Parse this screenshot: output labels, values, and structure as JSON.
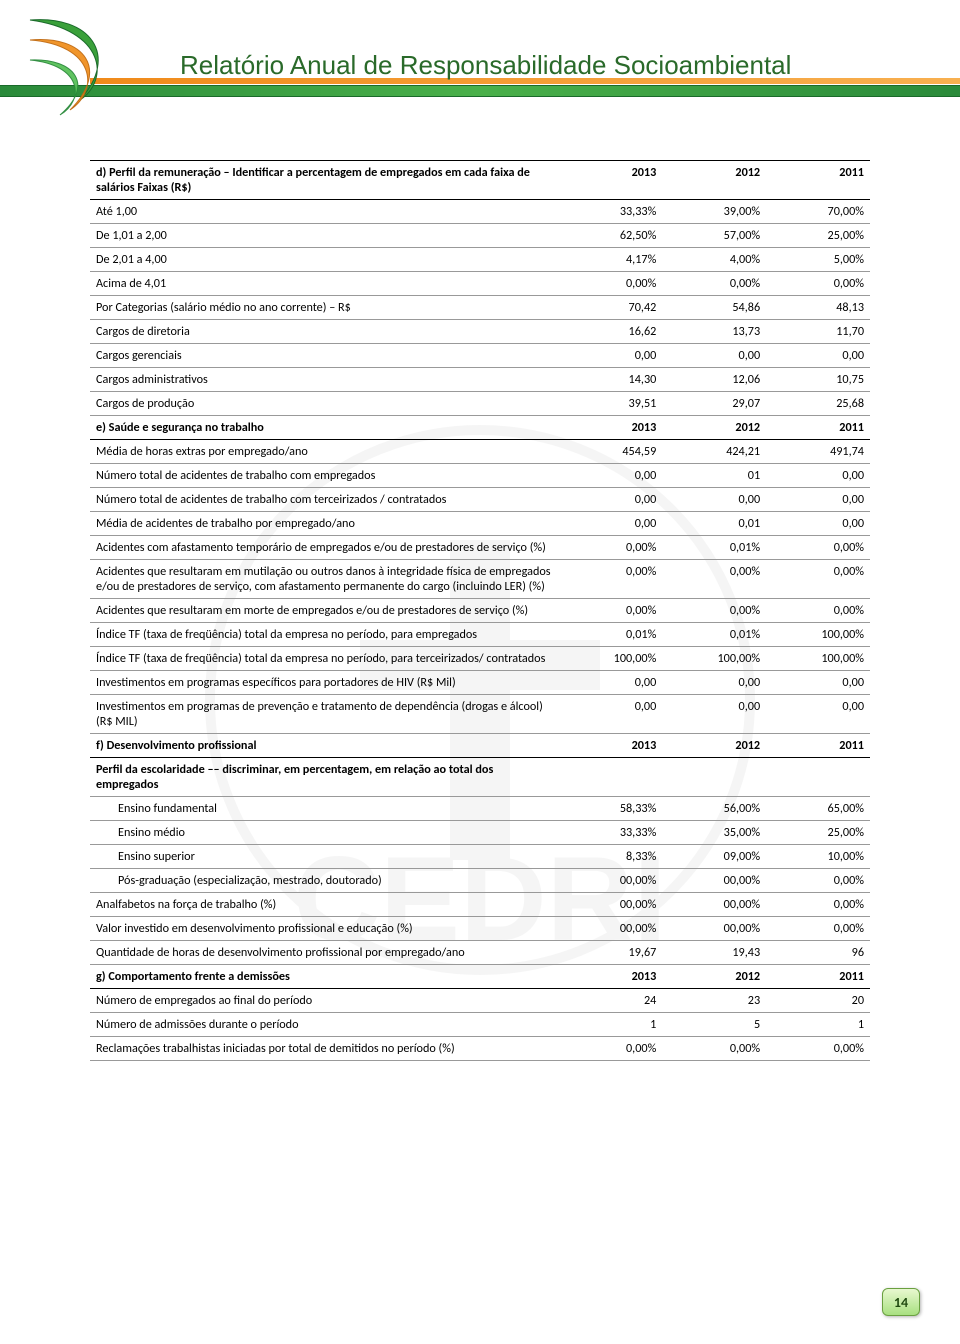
{
  "header": {
    "title": "Relatório Anual de Responsabilidade Socioambiental",
    "title_color": "#2a6a2a",
    "title_fontsize": 26
  },
  "page_number": "14",
  "colors": {
    "green_dark": "#2a8a3a",
    "green_light": "#4ab04a",
    "orange": "#f08a1a",
    "border": "#999999",
    "text": "#000000"
  },
  "table": {
    "columns_years": [
      "2013",
      "2012",
      "2011"
    ],
    "sections": [
      {
        "id": "d",
        "header_label": "d) Perfil da remuneração – Identificar a percentagem de empregados em cada faixa de salários Faixas (R$)",
        "header_cols": [
          "2013",
          "2012",
          "2011"
        ],
        "rows": [
          {
            "label": "Até 1,00",
            "vals": [
              "33,33%",
              "39,00%",
              "70,00%"
            ]
          },
          {
            "label": "De 1,01 a 2,00",
            "vals": [
              "62,50%",
              "57,00%",
              "25,00%"
            ]
          },
          {
            "label": "De 2,01 a 4,00",
            "vals": [
              "4,17%",
              "4,00%",
              "5,00%"
            ]
          },
          {
            "label": "Acima de 4,01",
            "vals": [
              "0,00%",
              "0,00%",
              "0,00%"
            ]
          },
          {
            "label": "Por Categorias (salário médio no ano corrente) – R$",
            "vals": [
              "70,42",
              "54,86",
              "48,13"
            ]
          },
          {
            "label": "Cargos de diretoria",
            "vals": [
              "16,62",
              "13,73",
              "11,70"
            ]
          },
          {
            "label": "Cargos gerenciais",
            "vals": [
              "0,00",
              "0,00",
              "0,00"
            ]
          },
          {
            "label": "Cargos administrativos",
            "vals": [
              "14,30",
              "12,06",
              "10,75"
            ]
          },
          {
            "label": "Cargos de produção",
            "vals": [
              "39,51",
              "29,07",
              "25,68"
            ]
          }
        ]
      },
      {
        "id": "e",
        "header_label": "e) Saúde e segurança no trabalho",
        "header_cols": [
          "2013",
          "2012",
          "2011"
        ],
        "rows": [
          {
            "label": "Média de horas extras por empregado/ano",
            "vals": [
              "454,59",
              "424,21",
              "491,74"
            ]
          },
          {
            "label": "Número total de acidentes de trabalho com empregados",
            "vals": [
              "0,00",
              "01",
              "0,00"
            ]
          },
          {
            "label": "Número total de acidentes de trabalho com terceirizados / contratados",
            "vals": [
              "0,00",
              "0,00",
              "0,00"
            ]
          },
          {
            "label": "Média de acidentes de trabalho por empregado/ano",
            "vals": [
              "0,00",
              "0,01",
              "0,00"
            ]
          },
          {
            "label": "Acidentes com afastamento temporário de empregados e/ou de prestadores de serviço (%)",
            "vals": [
              "0,00%",
              "0,01%",
              "0,00%"
            ]
          },
          {
            "label": "Acidentes que resultaram em mutilação ou outros danos à integridade física de empregados e/ou de prestadores de serviço, com afastamento permanente do cargo (incluindo LER) (%)",
            "vals": [
              "0,00%",
              "0,00%",
              "0,00%"
            ]
          },
          {
            "label": "Acidentes que resultaram em morte de empregados e/ou de prestadores de serviço (%)",
            "vals": [
              "0,00%",
              "0,00%",
              "0,00%"
            ]
          },
          {
            "label": "Índice TF (taxa de freqüência) total da empresa no período, para empregados",
            "vals": [
              "0,01%",
              "0,01%",
              "100,00%"
            ]
          },
          {
            "label": "Índice TF (taxa de freqüência) total da empresa no período, para terceirizados/ contratados",
            "vals": [
              "100,00%",
              "100,00%",
              "100,00%"
            ]
          },
          {
            "label": "Investimentos em programas específicos para portadores de HIV (R$ Mil)",
            "vals": [
              "0,00",
              "0,00",
              "0,00"
            ]
          },
          {
            "label": "Investimentos em programas de prevenção e tratamento de dependência (drogas e álcool) (R$ MIL)",
            "vals": [
              "0,00",
              "0,00",
              "0,00"
            ]
          }
        ]
      },
      {
        "id": "f",
        "header_label": "f) Desenvolvimento profissional",
        "header_cols": [
          "2013",
          "2012",
          "2011"
        ],
        "rows": [
          {
            "label": "Perfil da escolaridade –– discriminar, em percentagem, em relação ao total dos empregados",
            "vals": [
              "",
              "",
              ""
            ],
            "bold": true
          },
          {
            "label": "Ensino fundamental",
            "vals": [
              "58,33%",
              "56,00%",
              "65,00%"
            ],
            "indent": true
          },
          {
            "label": "Ensino médio",
            "vals": [
              "33,33%",
              "35,00%",
              "25,00%"
            ],
            "indent": true
          },
          {
            "label": "Ensino superior",
            "vals": [
              "8,33%",
              "09,00%",
              "10,00%"
            ],
            "indent": true
          },
          {
            "label": "Pós-graduação (especialização, mestrado, doutorado)",
            "vals": [
              "00,00%",
              "00,00%",
              "0,00%"
            ],
            "indent": true
          },
          {
            "label": "Analfabetos na força de trabalho (%)",
            "vals": [
              "00,00%",
              "00,00%",
              "0,00%"
            ]
          },
          {
            "label": "Valor investido em desenvolvimento profissional e educação (%)",
            "vals": [
              "00,00%",
              "00,00%",
              "0,00%"
            ]
          },
          {
            "label": "Quantidade de horas de desenvolvimento profissional por empregado/ano",
            "vals": [
              "19,67",
              "19,43",
              "96"
            ]
          }
        ]
      },
      {
        "id": "g",
        "header_label": "g) Comportamento frente a demissões",
        "header_cols": [
          "2013",
          "2012",
          "2011"
        ],
        "rows": [
          {
            "label": "Número de empregados ao final do período",
            "vals": [
              "24",
              "23",
              "20"
            ]
          },
          {
            "label": "Número de admissões durante o período",
            "vals": [
              "1",
              "5",
              "1"
            ]
          },
          {
            "label": "Reclamações trabalhistas iniciadas por total de demitidos no período (%)",
            "vals": [
              "0,00%",
              "0,00%",
              "0,00%"
            ]
          }
        ]
      }
    ]
  }
}
